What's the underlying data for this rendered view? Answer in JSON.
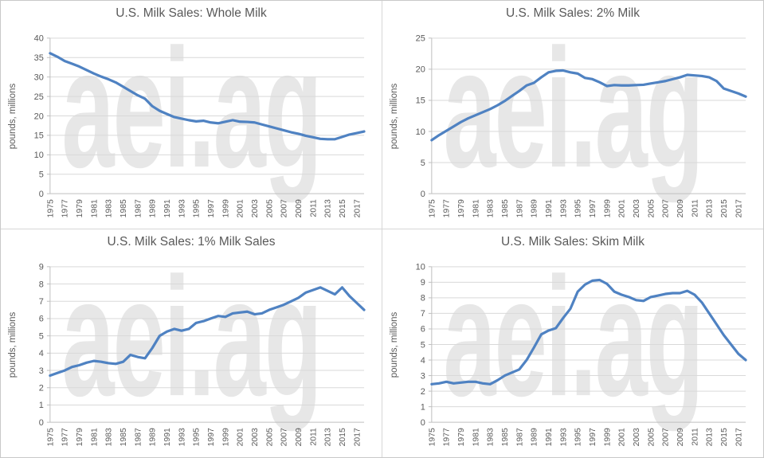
{
  "page": {
    "watermark_text": "aei.ag",
    "background": "#ffffff"
  },
  "colors": {
    "line": "#4f82c2",
    "grid": "#d9d9d9",
    "axis": "#bfbfbf",
    "text": "#595959",
    "title": "#595959",
    "watermark": "#e7e7e7"
  },
  "chart_data": [
    {
      "type": "line",
      "title": "U.S. Milk Sales: Whole Milk",
      "xlabel": "",
      "ylabel": "pounds, millions",
      "ylim": [
        0,
        40
      ],
      "y_ticks": [
        0,
        5,
        10,
        15,
        20,
        25,
        30,
        35,
        40
      ],
      "grid": true,
      "legend": false,
      "x": [
        1975,
        1976,
        1977,
        1978,
        1979,
        1980,
        1981,
        1982,
        1983,
        1984,
        1985,
        1986,
        1987,
        1988,
        1989,
        1990,
        1991,
        1992,
        1993,
        1994,
        1995,
        1996,
        1997,
        1998,
        1999,
        2000,
        2001,
        2002,
        2003,
        2004,
        2005,
        2006,
        2007,
        2008,
        2009,
        2010,
        2011,
        2012,
        2013,
        2014,
        2015,
        2016,
        2017,
        2018
      ],
      "x_tick_labels": [
        "1975",
        "1977",
        "1979",
        "1981",
        "1983",
        "1985",
        "1987",
        "1989",
        "1991",
        "1993",
        "1995",
        "1997",
        "1999",
        "2001",
        "2003",
        "2005",
        "2007",
        "2009",
        "2011",
        "2013",
        "2015",
        "2017"
      ],
      "values": [
        36.1,
        35.2,
        34.1,
        33.4,
        32.7,
        31.8,
        30.9,
        30.1,
        29.4,
        28.6,
        27.5,
        26.4,
        25.3,
        24.4,
        22.5,
        21.3,
        20.5,
        19.7,
        19.3,
        18.9,
        18.6,
        18.75,
        18.3,
        18.1,
        18.5,
        18.9,
        18.5,
        18.45,
        18.3,
        17.8,
        17.3,
        16.8,
        16.3,
        15.8,
        15.4,
        14.9,
        14.5,
        14.1,
        14.0,
        14.0,
        14.6,
        15.2,
        15.6,
        16.0
      ]
    },
    {
      "type": "line",
      "title": "U.S. Milk Sales: 2% Milk",
      "xlabel": "",
      "ylabel": "pounds, millions",
      "ylim": [
        0,
        25
      ],
      "y_ticks": [
        0,
        5,
        10,
        15,
        20,
        25
      ],
      "grid": true,
      "legend": false,
      "x": [
        1975,
        1976,
        1977,
        1978,
        1979,
        1980,
        1981,
        1982,
        1983,
        1984,
        1985,
        1986,
        1987,
        1988,
        1989,
        1990,
        1991,
        1992,
        1993,
        1994,
        1995,
        1996,
        1997,
        1998,
        1999,
        2000,
        2001,
        2002,
        2003,
        2004,
        2005,
        2006,
        2007,
        2008,
        2009,
        2010,
        2011,
        2012,
        2013,
        2014,
        2015,
        2016,
        2017,
        2018
      ],
      "x_tick_labels": [
        "1975",
        "1977",
        "1979",
        "1981",
        "1983",
        "1985",
        "1987",
        "1989",
        "1991",
        "1993",
        "1995",
        "1997",
        "1999",
        "2001",
        "2003",
        "2005",
        "2007",
        "2009",
        "2011",
        "2013",
        "2015",
        "2017"
      ],
      "values": [
        8.6,
        9.4,
        10.1,
        10.8,
        11.5,
        12.1,
        12.6,
        13.1,
        13.6,
        14.2,
        14.9,
        15.7,
        16.5,
        17.4,
        17.8,
        18.7,
        19.5,
        19.75,
        19.8,
        19.5,
        19.3,
        18.6,
        18.4,
        17.9,
        17.3,
        17.45,
        17.4,
        17.4,
        17.45,
        17.5,
        17.7,
        17.9,
        18.1,
        18.4,
        18.7,
        19.1,
        19.0,
        18.9,
        18.7,
        18.1,
        16.9,
        16.5,
        16.1,
        15.6
      ]
    },
    {
      "type": "line",
      "title": "U.S. Milk Sales: 1% Milk Sales",
      "xlabel": "",
      "ylabel": "pounds, millions",
      "ylim": [
        0,
        9
      ],
      "y_ticks": [
        0,
        1,
        2,
        3,
        4,
        5,
        6,
        7,
        8,
        9
      ],
      "grid": true,
      "legend": false,
      "x": [
        1975,
        1976,
        1977,
        1978,
        1979,
        1980,
        1981,
        1982,
        1983,
        1984,
        1985,
        1986,
        1987,
        1988,
        1989,
        1990,
        1991,
        1992,
        1993,
        1994,
        1995,
        1996,
        1997,
        1998,
        1999,
        2000,
        2001,
        2002,
        2003,
        2004,
        2005,
        2006,
        2007,
        2008,
        2009,
        2010,
        2011,
        2012,
        2013,
        2014,
        2015,
        2016,
        2017,
        2018
      ],
      "x_tick_labels": [
        "1975",
        "1977",
        "1979",
        "1981",
        "1983",
        "1985",
        "1987",
        "1989",
        "1991",
        "1993",
        "1995",
        "1997",
        "1999",
        "2001",
        "2003",
        "2005",
        "2007",
        "2009",
        "2011",
        "2013",
        "2015",
        "2017"
      ],
      "values": [
        2.7,
        2.85,
        3.0,
        3.2,
        3.3,
        3.45,
        3.55,
        3.5,
        3.42,
        3.38,
        3.5,
        3.9,
        3.78,
        3.7,
        4.3,
        5.0,
        5.25,
        5.4,
        5.3,
        5.4,
        5.75,
        5.85,
        6.0,
        6.15,
        6.1,
        6.3,
        6.35,
        6.4,
        6.25,
        6.3,
        6.5,
        6.65,
        6.8,
        7.0,
        7.2,
        7.5,
        7.65,
        7.8,
        7.6,
        7.4,
        7.8,
        7.3,
        6.9,
        6.5
      ]
    },
    {
      "type": "line",
      "title": "U.S. Milk Sales: Skim Milk",
      "xlabel": "",
      "ylabel": "pounds, millions",
      "ylim": [
        0,
        10
      ],
      "y_ticks": [
        0,
        1,
        2,
        3,
        4,
        5,
        6,
        7,
        8,
        9,
        10
      ],
      "grid": true,
      "legend": false,
      "x": [
        1975,
        1976,
        1977,
        1978,
        1979,
        1980,
        1981,
        1982,
        1983,
        1984,
        1985,
        1986,
        1987,
        1988,
        1989,
        1990,
        1991,
        1992,
        1993,
        1994,
        1995,
        1996,
        1997,
        1998,
        1999,
        2000,
        2001,
        2002,
        2003,
        2004,
        2005,
        2006,
        2007,
        2008,
        2009,
        2010,
        2011,
        2012,
        2013,
        2014,
        2015,
        2016,
        2017,
        2018
      ],
      "x_tick_labels": [
        "1975",
        "1977",
        "1979",
        "1981",
        "1983",
        "1985",
        "1987",
        "1989",
        "1991",
        "1993",
        "1995",
        "1997",
        "1999",
        "2001",
        "2003",
        "2005",
        "2007",
        "2009",
        "2011",
        "2013",
        "2015",
        "2017"
      ],
      "values": [
        2.45,
        2.5,
        2.6,
        2.5,
        2.55,
        2.6,
        2.6,
        2.5,
        2.45,
        2.7,
        3.0,
        3.2,
        3.4,
        4.0,
        4.8,
        5.65,
        5.9,
        6.05,
        6.7,
        7.3,
        8.4,
        8.85,
        9.1,
        9.15,
        8.9,
        8.4,
        8.2,
        8.05,
        7.85,
        7.8,
        8.05,
        8.15,
        8.25,
        8.3,
        8.3,
        8.45,
        8.2,
        7.7,
        7.0,
        6.3,
        5.6,
        5.0,
        4.4,
        4.0
      ]
    }
  ]
}
